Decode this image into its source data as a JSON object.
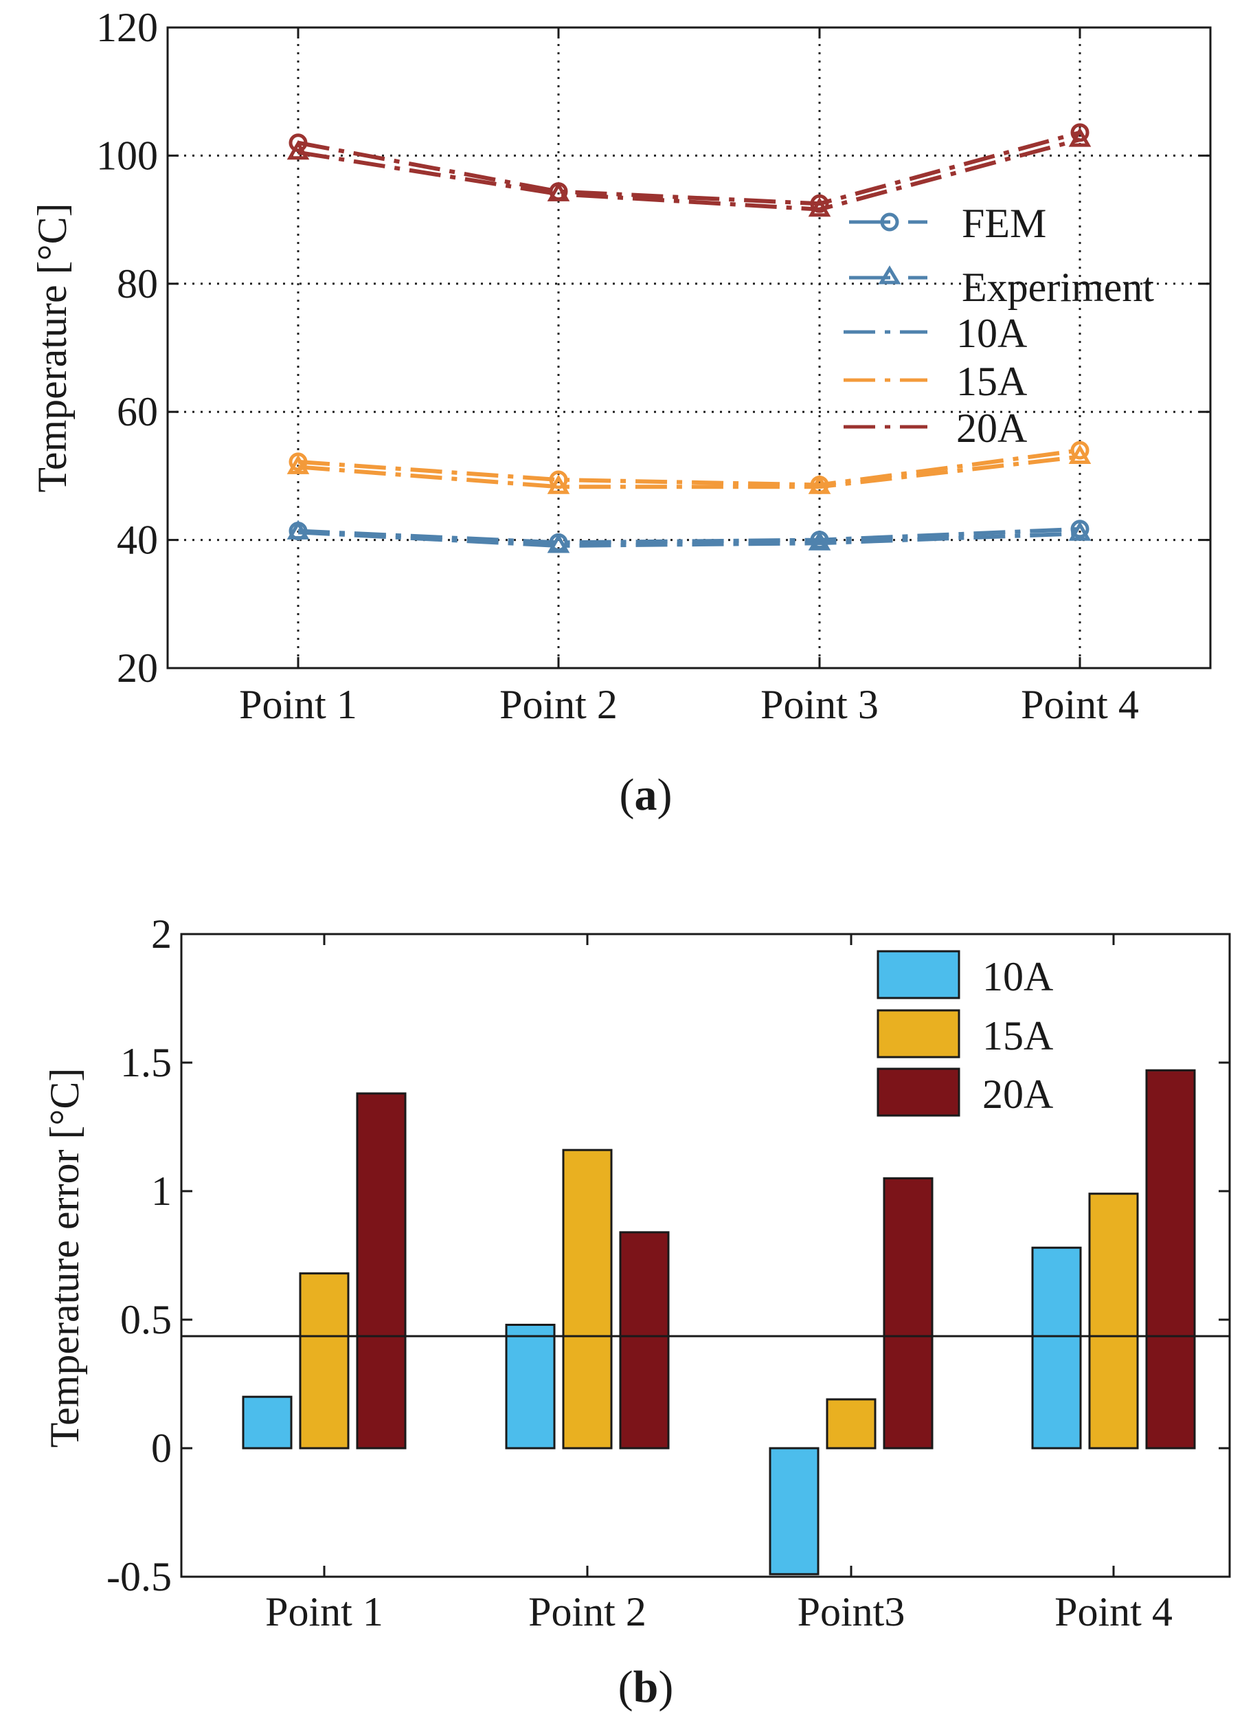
{
  "colors": {
    "s10": "#4f82ad",
    "s15": "#f39a3a",
    "s20": "#9b3330",
    "b10": "#4cbdec",
    "b15": "#e9b021",
    "b20": "#7c1419"
  },
  "chart_data": [
    {
      "type": "line",
      "title": "",
      "caption_letter": "a",
      "ylabel": "Temperature [°C]",
      "xlabel": "",
      "categories": [
        "Point 1",
        "Point 2",
        "Point 3",
        "Point 4"
      ],
      "ylim": [
        20,
        120
      ],
      "yticks": [
        "20",
        "40",
        "60",
        "80",
        "100",
        "120"
      ],
      "grid": true,
      "series": [
        {
          "name": "10A FEM",
          "current": "10A",
          "kind": "FEM",
          "color_key": "s10",
          "values": [
            41.4,
            39.6,
            40.0,
            41.7
          ]
        },
        {
          "name": "10A Experiment",
          "current": "10A",
          "kind": "Experiment",
          "color_key": "s10",
          "values": [
            41.2,
            39.1,
            39.5,
            41.0
          ]
        },
        {
          "name": "15A FEM",
          "current": "15A",
          "kind": "FEM",
          "color_key": "s15",
          "values": [
            52.2,
            49.4,
            48.6,
            54.0
          ]
        },
        {
          "name": "15A Experiment",
          "current": "15A",
          "kind": "Experiment",
          "color_key": "s15",
          "values": [
            51.4,
            48.3,
            48.3,
            53.0
          ]
        },
        {
          "name": "20A FEM",
          "current": "20A",
          "kind": "FEM",
          "color_key": "s20",
          "values": [
            102.0,
            94.4,
            92.5,
            103.6
          ]
        },
        {
          "name": "20A Experiment",
          "current": "20A",
          "kind": "Experiment",
          "color_key": "s20",
          "values": [
            100.5,
            94.0,
            91.6,
            102.5
          ]
        }
      ],
      "legend": {
        "position": "right",
        "markers": [
          {
            "label": "FEM",
            "marker": "circle"
          },
          {
            "label": "Experiment",
            "marker": "triangle"
          }
        ],
        "currents": [
          {
            "label": "10A",
            "color_key": "s10"
          },
          {
            "label": "15A",
            "color_key": "s15"
          },
          {
            "label": "20A",
            "color_key": "s20"
          }
        ]
      }
    },
    {
      "type": "bar",
      "title": "",
      "caption_letter": "b",
      "ylabel": "Temperature error [°C]",
      "xlabel": "",
      "categories": [
        "Point 1",
        "Point 2",
        "Point3",
        "Point 4"
      ],
      "ylim": [
        -0.5,
        2
      ],
      "yticks": [
        "-0.5",
        "0",
        "0.5",
        "1",
        "1.5",
        "2"
      ],
      "grid": false,
      "series": [
        {
          "name": "10A",
          "color_key": "b10",
          "values": [
            0.2,
            0.48,
            -0.49,
            0.78
          ]
        },
        {
          "name": "15A",
          "color_key": "b15",
          "values": [
            0.68,
            1.16,
            0.19,
            0.99
          ]
        },
        {
          "name": "20A",
          "color_key": "b20",
          "values": [
            1.38,
            0.84,
            1.05,
            1.47
          ]
        }
      ],
      "legend": {
        "position": "top-right"
      }
    }
  ]
}
